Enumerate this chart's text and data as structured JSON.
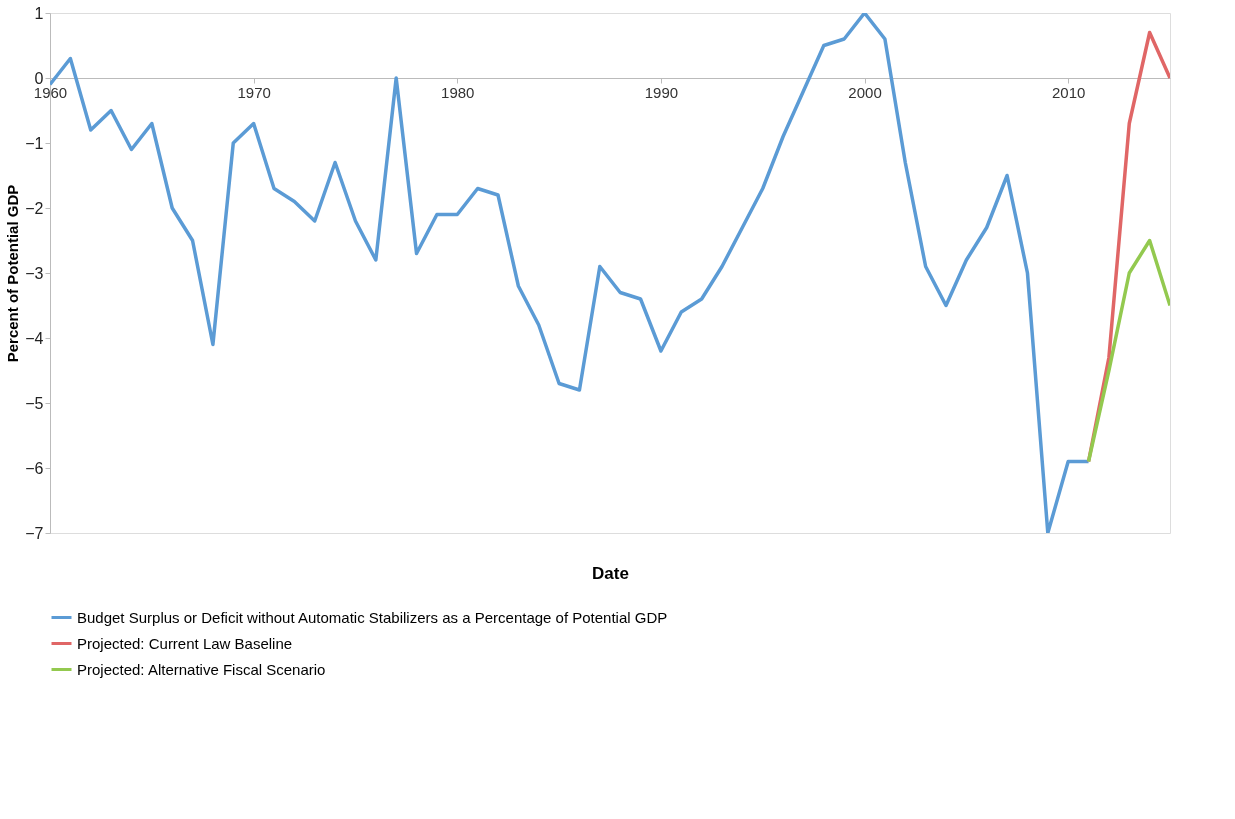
{
  "chart_data": {
    "type": "line",
    "xlabel": "Date",
    "ylabel": "Percent of Potential GDP",
    "xlim": [
      1960,
      2015
    ],
    "xticks": [
      1960,
      1970,
      1980,
      1990,
      2000,
      2010
    ],
    "ylim": [
      -7,
      1
    ],
    "yticks": [
      -7,
      -6,
      -5,
      -4,
      -3,
      -2,
      -1,
      0,
      1
    ],
    "grid": false,
    "legend": "bottom",
    "marker": "none",
    "line_style": "solid",
    "series": [
      {
        "name": "Budget Surplus or Deficit without Automatic Stabilizers as a Percentage of Potential GDP",
        "color": "#5b9bd5",
        "x": [
          1960,
          1961,
          1962,
          1963,
          1964,
          1965,
          1966,
          1967,
          1968,
          1969,
          1970,
          1971,
          1972,
          1973,
          1974,
          1975,
          1976,
          1977,
          1978,
          1979,
          1980,
          1981,
          1982,
          1983,
          1984,
          1985,
          1986,
          1987,
          1988,
          1989,
          1990,
          1991,
          1992,
          1993,
          1994,
          1995,
          1996,
          1997,
          1998,
          1999,
          2000,
          2001,
          2002,
          2003,
          2004,
          2005,
          2006,
          2007,
          2008,
          2009,
          2010,
          2011
        ],
        "values": [
          -0.1,
          0.3,
          -0.8,
          -0.5,
          -1.1,
          -0.7,
          -2.0,
          -2.5,
          -4.1,
          -1.0,
          -0.7,
          -1.7,
          -1.9,
          -2.2,
          -1.3,
          -2.2,
          -2.8,
          0.0,
          -2.7,
          -2.1,
          -2.1,
          -1.7,
          -1.8,
          -3.2,
          -3.8,
          -4.7,
          -4.8,
          -2.9,
          -3.3,
          -3.4,
          -4.2,
          -3.6,
          -3.4,
          -2.9,
          -2.3,
          -1.7,
          -0.9,
          -0.2,
          0.5,
          0.6,
          1.0,
          0.6,
          -1.3,
          -2.9,
          -3.5,
          -2.8,
          -2.3,
          -1.5,
          -3.0,
          -7.0,
          -5.9,
          -5.9
        ]
      },
      {
        "name": "Projected: Current Law Baseline",
        "color": "#e06666",
        "x": [
          2011,
          2012,
          2013,
          2014,
          2015
        ],
        "values": [
          -5.9,
          -4.3,
          -0.7,
          0.7,
          0.0
        ]
      },
      {
        "name": "Projected: Alternative Fiscal Scenario",
        "color": "#93c94f",
        "x": [
          2011,
          2012,
          2013,
          2014,
          2015
        ],
        "values": [
          -5.9,
          -4.5,
          -3.0,
          -2.5,
          -3.5
        ]
      }
    ]
  }
}
